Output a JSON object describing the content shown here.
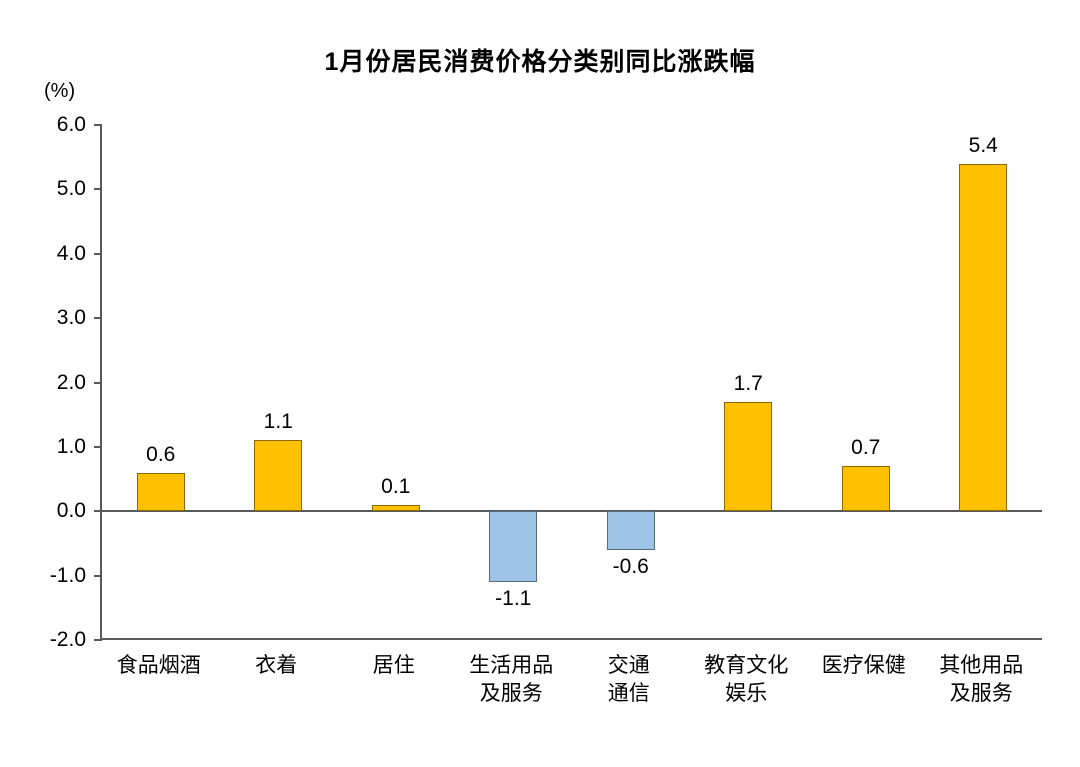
{
  "chart_data": {
    "type": "bar",
    "title": "1月份居民消费价格分类别同比涨跌幅",
    "ylabel": "(%)",
    "xlabel": "",
    "ylim": [
      -2.0,
      6.0
    ],
    "yticks": [
      6.0,
      5.0,
      4.0,
      3.0,
      2.0,
      1.0,
      0.0,
      -1.0,
      -2.0
    ],
    "grid": false,
    "legend_position": "none",
    "categories": [
      "食品烟酒",
      "衣着",
      "居住",
      "生活用品\n及服务",
      "交通\n通信",
      "教育文化\n娱乐",
      "医疗保健",
      "其他用品\n及服务"
    ],
    "values": [
      0.6,
      1.1,
      0.1,
      -1.1,
      -0.6,
      1.7,
      0.7,
      5.4
    ],
    "value_labels": [
      "0.6",
      "1.1",
      "0.1",
      "-1.1",
      "-0.6",
      "1.7",
      "0.7",
      "5.4"
    ],
    "colors": {
      "positive_bar": "#FFC000",
      "negative_bar": "#9DC3E6",
      "axis": "#595959",
      "text": "#000000",
      "background": "#FFFFFF"
    }
  }
}
